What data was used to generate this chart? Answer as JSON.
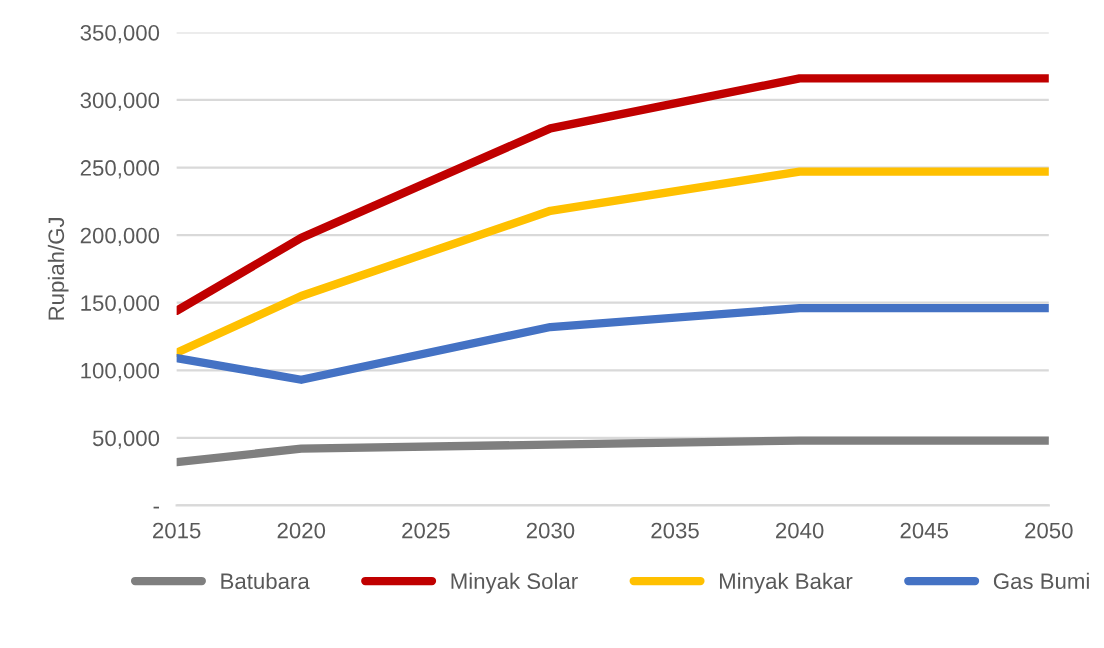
{
  "chart_data": {
    "type": "line",
    "ylabel": "Rupiah/GJ",
    "x": [
      2015,
      2020,
      2030,
      2040,
      2050
    ],
    "series": [
      {
        "name": "Batubara",
        "color": "#7f7f7f",
        "values": [
          32000,
          42000,
          45000,
          48000,
          48000
        ]
      },
      {
        "name": "Minyak Solar",
        "color": "#c00000",
        "values": [
          144000,
          198000,
          279000,
          316000,
          316000
        ]
      },
      {
        "name": "Minyak Bakar",
        "color": "#ffc000",
        "values": [
          113000,
          155000,
          218000,
          247000,
          247000
        ]
      },
      {
        "name": "Gas Bumi",
        "color": "#4472c4",
        "values": [
          109000,
          93000,
          132000,
          146000,
          146000
        ]
      }
    ],
    "xlim": [
      2015,
      2050
    ],
    "xticks": [
      2015,
      2020,
      2025,
      2030,
      2035,
      2040,
      2045,
      2050
    ],
    "ylim": [
      0,
      350000
    ],
    "yticks": [
      {
        "value": 0,
        "label": "-"
      },
      {
        "value": 50000,
        "label": "50,000"
      },
      {
        "value": 100000,
        "label": "100,000"
      },
      {
        "value": 150000,
        "label": "150,000"
      },
      {
        "value": 200000,
        "label": "200,000"
      },
      {
        "value": 250000,
        "label": "250,000"
      },
      {
        "value": 300000,
        "label": "300,000"
      },
      {
        "value": 350000,
        "label": "350,000"
      }
    ],
    "grid": "y",
    "legend": "bottom",
    "marker": "none",
    "line_style": "solid"
  }
}
